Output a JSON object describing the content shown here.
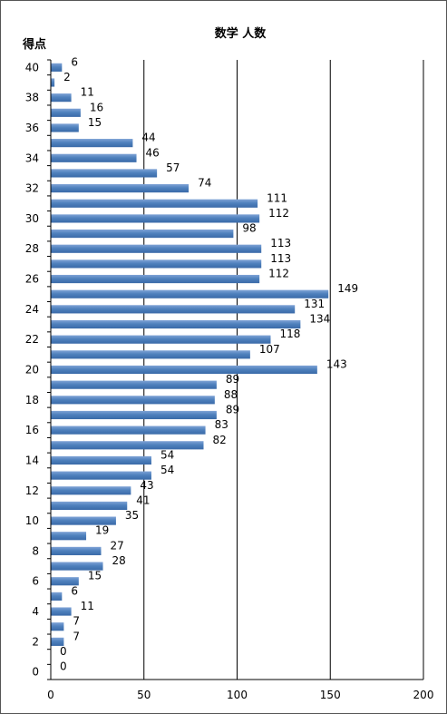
{
  "chart_data": {
    "type": "bar",
    "orientation": "horizontal",
    "title": "数学 人数",
    "ylabel": "得点",
    "xlabel": "",
    "xlim": [
      0,
      200
    ],
    "xticks": [
      0,
      50,
      100,
      150,
      200
    ],
    "yticks": [
      40,
      38,
      36,
      34,
      32,
      30,
      28,
      26,
      24,
      22,
      20,
      18,
      16,
      14,
      12,
      10,
      8,
      6,
      4,
      2,
      0
    ],
    "grid": true,
    "bar_color": "#4F81BD",
    "categories": [
      40,
      39,
      38,
      37,
      36,
      35,
      34,
      33,
      32,
      31,
      30,
      29,
      28,
      27,
      26,
      25,
      24,
      23,
      22,
      21,
      20,
      19,
      18,
      17,
      16,
      15,
      14,
      13,
      12,
      11,
      10,
      9,
      8,
      7,
      6,
      5,
      4,
      3,
      2,
      1,
      0
    ],
    "values": [
      6,
      2,
      11,
      16,
      15,
      44,
      46,
      57,
      74,
      111,
      112,
      98,
      113,
      113,
      112,
      149,
      131,
      134,
      118,
      107,
      143,
      89,
      88,
      89,
      83,
      82,
      54,
      54,
      43,
      41,
      35,
      19,
      27,
      28,
      15,
      6,
      11,
      7,
      7,
      0,
      0
    ],
    "data_labels": [
      "6",
      "2",
      "11",
      "16",
      "15",
      "44",
      "46",
      "57",
      "74",
      "111",
      "112",
      "98",
      "113",
      "113",
      "112",
      "149",
      "131",
      "134",
      "118",
      "107",
      "143",
      "89",
      "88",
      "89",
      "83",
      "82",
      "54",
      "54",
      "43",
      "41",
      "35",
      "19",
      "27",
      "28",
      "15",
      "6",
      "11",
      "7",
      "7",
      "0",
      "0"
    ]
  }
}
